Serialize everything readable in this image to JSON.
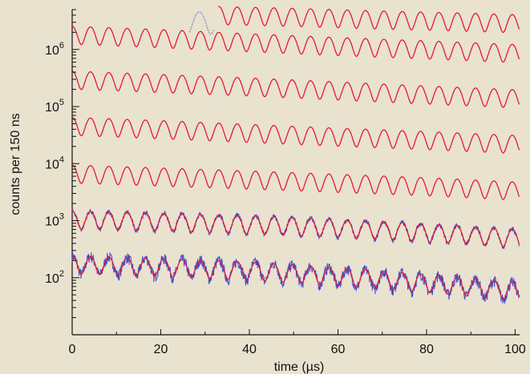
{
  "chart_data": {
    "type": "line",
    "title": "",
    "xlabel": "time (µs)",
    "ylabel": "counts per 150 ns",
    "xlim": [
      0,
      101
    ],
    "x_ticks": [
      0,
      20,
      40,
      60,
      80,
      100
    ],
    "x_tick_labels": [
      "0",
      "20",
      "40",
      "60",
      "80",
      "100"
    ],
    "y_scale": "log",
    "y_ticks": [
      100,
      1000,
      10000,
      100000,
      1000000
    ],
    "y_tick_labels": [
      {
        "base": "10",
        "exp": "2"
      },
      {
        "base": "10",
        "exp": "3"
      },
      {
        "base": "10",
        "exp": "4"
      },
      {
        "base": "10",
        "exp": "5"
      },
      {
        "base": "10",
        "exp": "6"
      }
    ],
    "ylim": [
      10,
      5000000
    ],
    "grid": false,
    "period_us": 4.14,
    "series": [
      {
        "x": [
          0,
          20,
          40,
          60,
          80,
          101
        ],
        "y": [
          180,
          160,
          140,
          110,
          85,
          60
        ],
        "modulation_amplitude": 0.35,
        "noise": true,
        "fit_overlay": true
      },
      {
        "x": [
          0,
          20,
          40,
          60,
          80,
          101
        ],
        "y": [
          1100,
          1000,
          900,
          780,
          650,
          520
        ],
        "modulation_amplitude": 0.35,
        "noise": true,
        "fit_overlay": true
      },
      {
        "x": [
          0,
          20,
          40,
          60,
          80,
          101
        ],
        "y": [
          7000,
          6200,
          5500,
          4800,
          4200,
          3500
        ],
        "modulation_amplitude": 0.35,
        "noise": false,
        "fit_overlay": true
      },
      {
        "x": [
          0,
          20,
          40,
          60,
          80,
          101
        ],
        "y": [
          48000,
          42000,
          36000,
          31000,
          27000,
          23000
        ],
        "modulation_amplitude": 0.35,
        "noise": false,
        "fit_overlay": true
      },
      {
        "x": [
          0,
          20,
          40,
          60,
          80,
          101
        ],
        "y": [
          310000,
          270000,
          235000,
          200000,
          170000,
          145000
        ],
        "modulation_amplitude": 0.35,
        "noise": false,
        "fit_overlay": true
      },
      {
        "x": [
          0,
          20,
          40,
          60,
          80,
          101
        ],
        "y": [
          1900000,
          1650000,
          1400000,
          1200000,
          1050000,
          900000
        ],
        "modulation_amplitude": 0.35,
        "noise": false,
        "fit_overlay": true
      },
      {
        "x": [
          33,
          50,
          70,
          90,
          101
        ],
        "y": [
          4200000,
          3900000,
          3500000,
          3200000,
          3000000
        ],
        "modulation_amplitude": 0.35,
        "noise": false,
        "fit_overlay": true
      }
    ],
    "inset_wave": {
      "x_start": 26.5,
      "x_end": 32,
      "y": 3200000
    },
    "colors": {
      "data": "#3b4fd0",
      "fit": "#e8192c",
      "inset": "#6b77b8",
      "axis": "#111111"
    }
  }
}
